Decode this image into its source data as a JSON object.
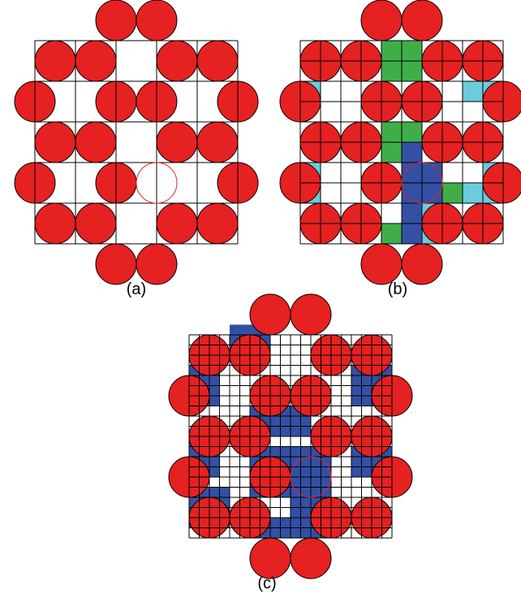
{
  "colors": {
    "particle": "#e52121",
    "outline": "#000000",
    "grid_line": "#000000",
    "probe": "#e52121",
    "cell_blue": "#3450a4",
    "cell_cyan": "#6ccbdc",
    "cell_green": "#3fae49",
    "background": "#ffffff"
  },
  "panels": [
    {
      "id": "a",
      "caption": "(a)"
    },
    {
      "id": "b",
      "caption": "(b)"
    },
    {
      "id": "c",
      "caption": "(c)"
    }
  ]
}
